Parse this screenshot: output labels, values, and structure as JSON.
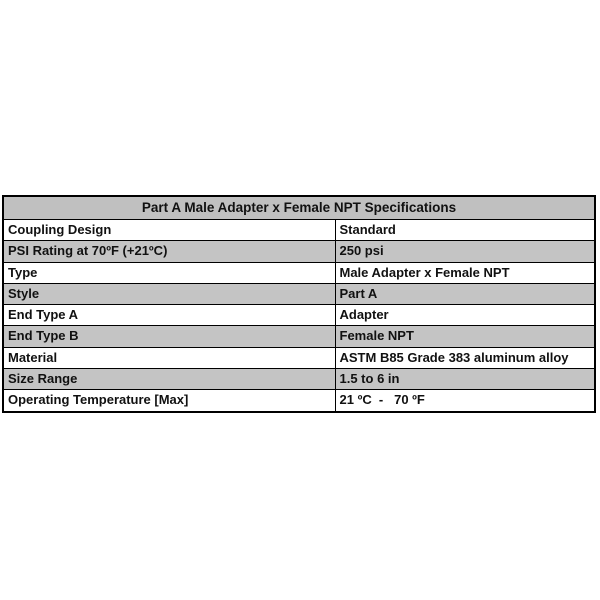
{
  "table": {
    "title": "Part A Male Adapter x Female NPT Specifications",
    "rows": [
      {
        "label": "Coupling Design",
        "value": "Standard"
      },
      {
        "label": "PSI Rating at 70ºF (+21ºC)",
        "value": "250 psi"
      },
      {
        "label": "Type",
        "value": "Male Adapter x Female NPT"
      },
      {
        "label": "Style",
        "value": "Part A"
      },
      {
        "label": "End Type A",
        "value": "Adapter"
      },
      {
        "label": "End Type B",
        "value": "Female NPT"
      },
      {
        "label": "Material",
        "value": "ASTM B85 Grade 383 aluminum alloy"
      },
      {
        "label": "Size Range",
        "value": "1.5 to 6 in"
      },
      {
        "label": "Operating Temperature [Max]",
        "value": "21 ºC  -   70 ºF"
      }
    ],
    "colors": {
      "header_bg": "#c0c0c0",
      "shaded_row_bg": "#c4c4c4",
      "border": "#000000"
    }
  }
}
